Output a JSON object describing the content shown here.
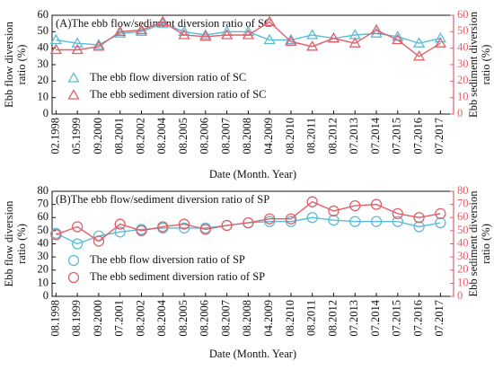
{
  "chart_data": [
    {
      "type": "line",
      "marker": "triangle",
      "title": "(A)The ebb flow/sediment diversion ratio of  SC",
      "xlabel": "Date (Month. Year)",
      "ylabel": [
        "Ebb flow diversion",
        "ratio (%)"
      ],
      "y2label": [
        "Ebb sediment diversion",
        "ratio (%)"
      ],
      "categories": [
        "02.1998",
        "05.1999",
        "09.2000",
        "08.2001",
        "08.2002",
        "08.2004",
        "08.2005",
        "08.2006",
        "08.2007",
        "08.2008",
        "04.2009",
        "08.2010",
        "08.2011",
        "08.2012",
        "07.2013",
        "07.2014",
        "07.2015",
        "07.2016",
        "07.2017"
      ],
      "series": [
        {
          "name": "The ebb flow diversion ratio of  SC",
          "color": "#5cbcd6",
          "values": [
            45,
            43,
            42,
            49,
            50,
            55,
            50,
            48,
            50,
            50,
            45,
            45,
            48,
            46,
            48,
            49,
            47,
            43,
            46
          ]
        },
        {
          "name": "The ebb sediment diversion ratio of SC",
          "color": "#e0606a",
          "axis": "y2",
          "values": [
            39,
            39,
            41,
            50,
            51,
            56,
            48,
            47,
            48,
            48,
            56,
            44,
            41,
            46,
            43,
            51,
            45,
            35,
            43
          ]
        }
      ],
      "ylim": [
        0,
        60
      ],
      "yticks": [
        0,
        10,
        20,
        30,
        40,
        50,
        60
      ],
      "y2lim": [
        0,
        60
      ],
      "y2ticks": [
        0,
        10,
        20,
        30,
        40,
        50,
        60
      ],
      "legend": "lower left",
      "grid": false
    },
    {
      "type": "line",
      "marker": "circle",
      "title": "(B)The ebb flow/sediment diversion ratio of  SP",
      "xlabel": "Date (Month. Year)",
      "ylabel": [
        "Ebb flow diversion",
        "ratio (%)"
      ],
      "y2label": [
        "Ebb sediment diversion",
        "ratio (%)"
      ],
      "categories": [
        "08.1998",
        "08.1999",
        "09.2000",
        "07.2001",
        "08.2002",
        "08.2004",
        "08.2005",
        "08.2006",
        "08.2007",
        "08.2008",
        "04.2009",
        "08.2010",
        "08.2011",
        "08.2012",
        "07.2013",
        "07.2014",
        "07.2015",
        "07.2016",
        "07.2017"
      ],
      "series": [
        {
          "name": "The ebb flow diversion ratio of SP",
          "color": "#5cbcd6",
          "values": [
            48,
            40,
            46,
            49,
            51,
            52,
            52,
            52,
            54,
            56,
            57,
            57,
            60,
            58,
            57,
            57,
            57,
            53,
            56
          ]
        },
        {
          "name": "The ebb sediment diversion ratio of SP",
          "color": "#e0606a",
          "axis": "y2",
          "values": [
            47,
            53,
            42,
            55,
            50,
            53,
            55,
            51,
            54,
            56,
            59,
            59,
            72,
            65,
            69,
            70,
            63,
            60,
            63
          ]
        }
      ],
      "ylim": [
        0,
        80
      ],
      "yticks": [
        0,
        10,
        20,
        30,
        40,
        50,
        60,
        70,
        80
      ],
      "y2lim": [
        0,
        80
      ],
      "y2ticks": [
        0,
        10,
        20,
        30,
        40,
        50,
        60,
        70,
        80
      ],
      "legend": "lower left",
      "grid": false
    }
  ]
}
